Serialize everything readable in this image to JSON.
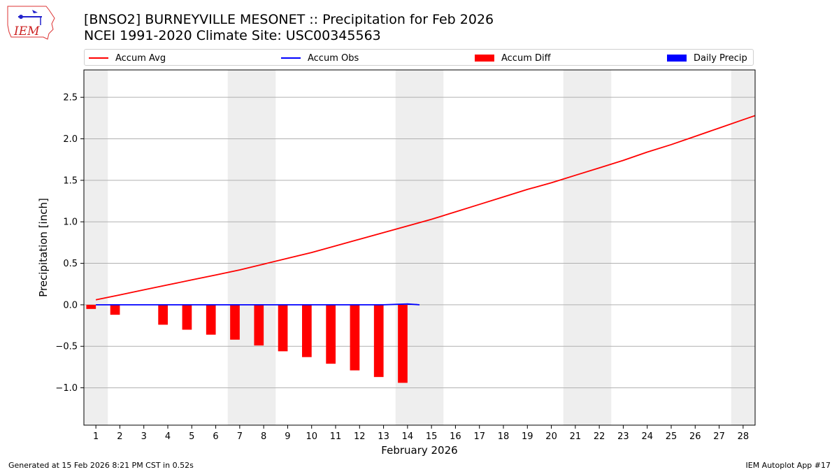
{
  "logo": {
    "text": "IEM"
  },
  "header": {
    "title": "[BNSO2] BURNEYVILLE MESONET :: Precipitation for Feb 2026",
    "subtitle": "NCEI 1991-2020 Climate Site: USC00345563"
  },
  "legend": {
    "items": [
      {
        "label": "Accum Avg",
        "kind": "line",
        "color": "#ff0000"
      },
      {
        "label": "Accum Obs",
        "kind": "line",
        "color": "#0000ff"
      },
      {
        "label": "Accum Diff",
        "kind": "patch",
        "color": "#ff0000"
      },
      {
        "label": "Daily Precip",
        "kind": "patch",
        "color": "#0000ff"
      }
    ]
  },
  "footer": {
    "left": "Generated at 15 Feb 2026 8:21 PM CST in 0.52s",
    "right": "IEM Autoplot App #17"
  },
  "chart_data": {
    "type": "bar",
    "xlabel": "February 2026",
    "ylabel": "Precipitation [inch]",
    "xlim": [
      0.5,
      28.5
    ],
    "ylim": [
      -1.45,
      2.83
    ],
    "yticks": [
      -1.0,
      -0.5,
      0.0,
      0.5,
      1.0,
      1.5,
      2.0,
      2.5
    ],
    "ytick_labels": [
      "−1.0",
      "−0.5",
      "0.0",
      "0.5",
      "1.0",
      "1.5",
      "2.0",
      "2.5"
    ],
    "xticks": [
      1,
      2,
      3,
      4,
      5,
      6,
      7,
      8,
      9,
      10,
      11,
      12,
      13,
      14,
      15,
      16,
      17,
      18,
      19,
      20,
      21,
      22,
      23,
      24,
      25,
      26,
      27,
      28
    ],
    "xtick_labels": [
      "1",
      "2",
      "3",
      "4",
      "5",
      "6",
      "7",
      "8",
      "9",
      "10",
      "11",
      "12",
      "13",
      "14",
      "15",
      "16",
      "17",
      "18",
      "19",
      "20",
      "21",
      "22",
      "23",
      "24",
      "25",
      "26",
      "27",
      "28"
    ],
    "grid": "y",
    "weekend_shading": [
      [
        0.5,
        1.5
      ],
      [
        6.5,
        8.5
      ],
      [
        13.5,
        15.5
      ],
      [
        20.5,
        22.5
      ],
      [
        27.5,
        28.5
      ]
    ],
    "series": [
      {
        "name": "Accum Avg",
        "kind": "line",
        "color": "#ff0000",
        "x": [
          1,
          2,
          3,
          4,
          5,
          6,
          7,
          8,
          9,
          10,
          11,
          12,
          13,
          14,
          15,
          16,
          17,
          18,
          19,
          20,
          21,
          22,
          23,
          24,
          25,
          26,
          27,
          28,
          28.5
        ],
        "values": [
          0.06,
          0.12,
          0.18,
          0.24,
          0.3,
          0.36,
          0.42,
          0.49,
          0.56,
          0.63,
          0.71,
          0.79,
          0.87,
          0.95,
          1.03,
          1.12,
          1.21,
          1.3,
          1.39,
          1.47,
          1.56,
          1.65,
          1.74,
          1.84,
          1.93,
          2.03,
          2.13,
          2.23,
          2.28
        ]
      },
      {
        "name": "Accum Obs",
        "kind": "line",
        "color": "#0000ff",
        "x": [
          1,
          2,
          4,
          5,
          6,
          7,
          8,
          9,
          10,
          11,
          12,
          13,
          14,
          14.5
        ],
        "values": [
          0.0,
          0.0,
          0.0,
          0.0,
          0.0,
          0.0,
          0.0,
          0.0,
          0.0,
          0.0,
          0.0,
          0.0,
          0.01,
          0.0
        ]
      },
      {
        "name": "Accum Diff",
        "kind": "bar",
        "color": "#ff0000",
        "offset": -0.2,
        "width": 0.4,
        "x": [
          1,
          2,
          4,
          5,
          6,
          7,
          8,
          9,
          10,
          11,
          12,
          13,
          14
        ],
        "values": [
          -0.05,
          -0.12,
          -0.24,
          -0.3,
          -0.36,
          -0.42,
          -0.49,
          -0.56,
          -0.63,
          -0.71,
          -0.79,
          -0.87,
          -0.94
        ]
      },
      {
        "name": "Daily Precip",
        "kind": "bar",
        "color": "#0000ff",
        "offset": 0.2,
        "width": 0.4,
        "x": [
          14
        ],
        "values": [
          0.01
        ]
      }
    ]
  }
}
